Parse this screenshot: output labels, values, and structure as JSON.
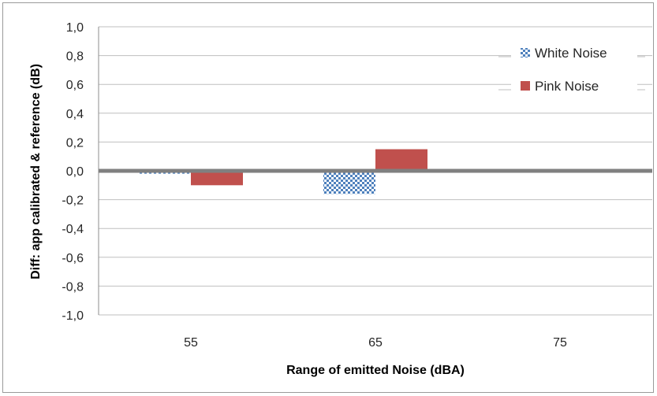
{
  "chart_data": {
    "type": "bar",
    "categories": [
      "55",
      "65",
      "75"
    ],
    "series": [
      {
        "name": "White Noise",
        "values": [
          -0.02,
          -0.16,
          0
        ],
        "color": "#4f81bd",
        "pattern": "checker"
      },
      {
        "name": "Pink Noise",
        "values": [
          -0.1,
          0.15,
          0
        ],
        "color": "#c0504d",
        "pattern": "solid"
      }
    ],
    "title": "",
    "xlabel": "Range of emitted Noise (dBA)",
    "ylabel": "Diff: app calibrated & reference (dB)",
    "ylim": [
      -1.0,
      1.0
    ],
    "yticks": [
      "1,0",
      "0,8",
      "0,6",
      "0,4",
      "0,2",
      "0,0",
      "-0,2",
      "-0,4",
      "-0,6",
      "-0,8",
      "-1,0"
    ],
    "grid": "horizontal",
    "legend_position": "top-right",
    "zero_line_color": "#808080"
  }
}
